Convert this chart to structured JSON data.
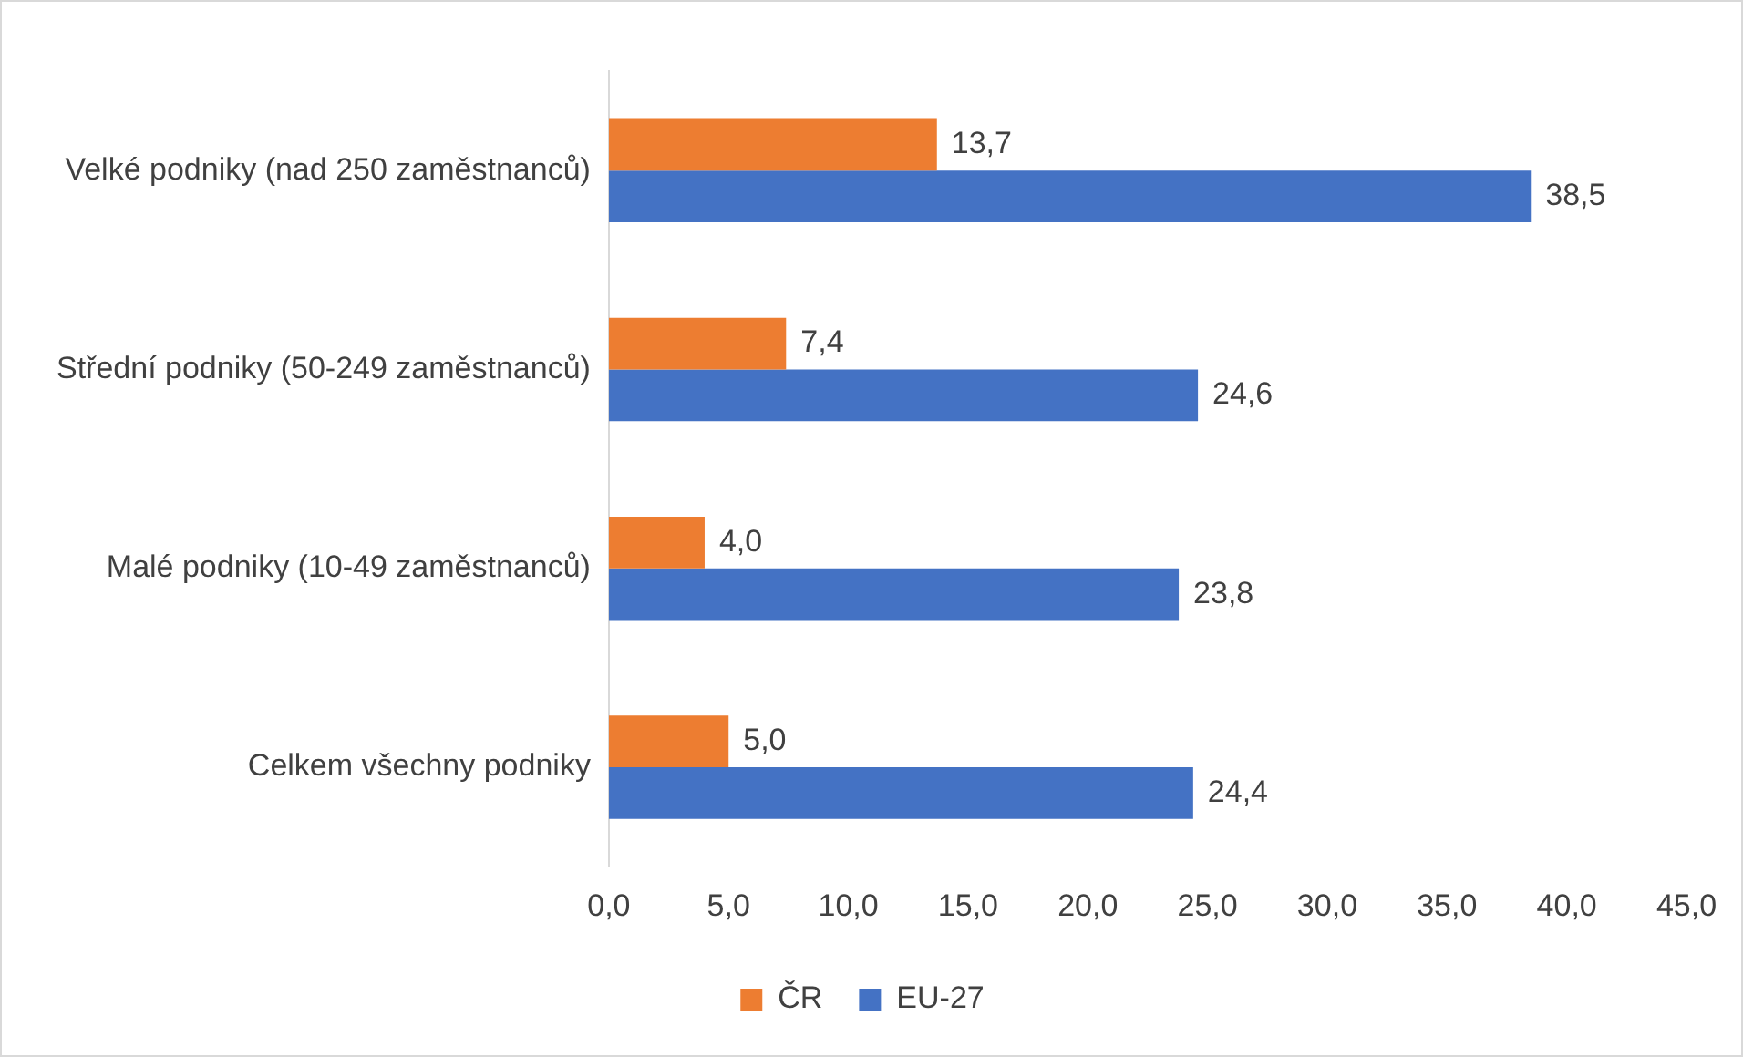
{
  "chart_data": {
    "type": "bar",
    "orientation": "horizontal",
    "categories": [
      "Velké podniky (nad 250 zaměstnanců)",
      "Střední podniky (50-249 zaměstnanců)",
      "Malé podniky (10-49 zaměstnanců)",
      "Celkem všechny podniky"
    ],
    "series": [
      {
        "name": "ČR",
        "color": "#ed7d31",
        "values": [
          13.7,
          7.4,
          4.0,
          5.0
        ],
        "value_labels": [
          "13,7",
          "7,4",
          "4,0",
          "5,0"
        ]
      },
      {
        "name": "EU-27",
        "color": "#4472c4",
        "values": [
          38.5,
          24.6,
          23.8,
          24.4
        ],
        "value_labels": [
          "38,5",
          "24,6",
          "23,8",
          "24,4"
        ]
      }
    ],
    "xlim": [
      0,
      45
    ],
    "xticks": [
      {
        "value": 0,
        "label": "0,0"
      },
      {
        "value": 5,
        "label": "5,0"
      },
      {
        "value": 10,
        "label": "10,0"
      },
      {
        "value": 15,
        "label": "15,0"
      },
      {
        "value": 20,
        "label": "20,0"
      },
      {
        "value": 25,
        "label": "25,0"
      },
      {
        "value": 30,
        "label": "30,0"
      },
      {
        "value": 35,
        "label": "35,0"
      },
      {
        "value": 40,
        "label": "40,0"
      },
      {
        "value": 45,
        "label": "45,0"
      }
    ],
    "grid": false,
    "legend": "bottom"
  }
}
